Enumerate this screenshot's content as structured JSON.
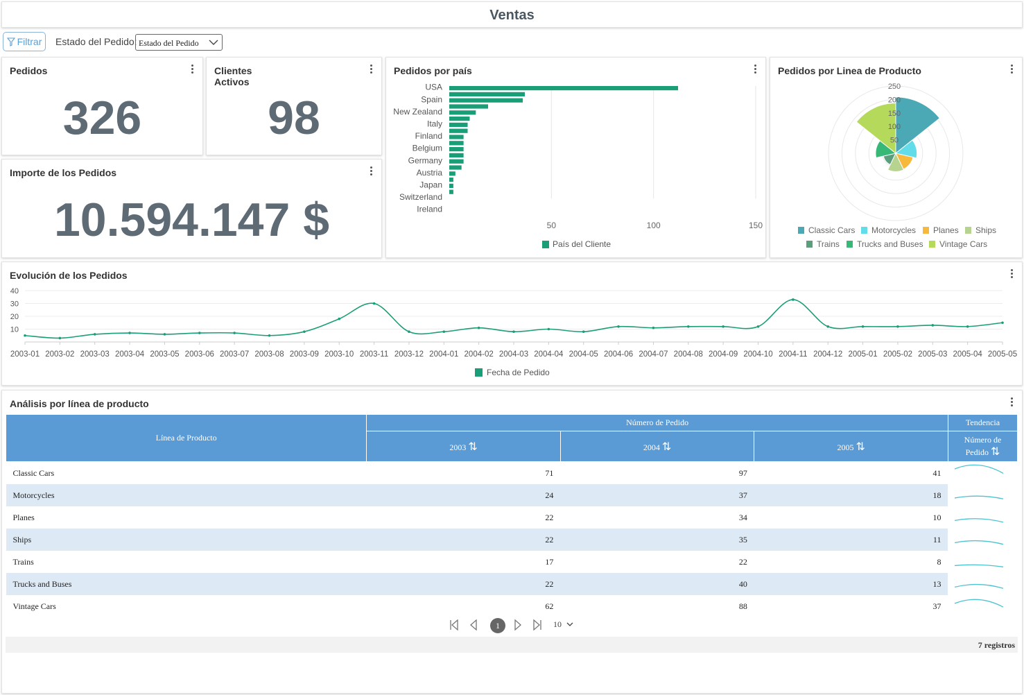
{
  "header": {
    "title": "Ventas"
  },
  "toolbar": {
    "filter_label": "Filtrar",
    "state_label": "Estado del Pedido:",
    "state_select": "Estado del Pedido"
  },
  "kpis": {
    "orders_title": "Pedidos",
    "orders_value": "326",
    "clients_title_1": "Clientes",
    "clients_title_2": "Activos",
    "clients_value": "98",
    "amount_title": "Importe de los Pedidos",
    "amount_value": "10.594.147 $"
  },
  "colors": {
    "bar": "#1a9e77",
    "line": "#1a9e77",
    "header_blue": "#5b9bd5",
    "row_alt": "#dde9f5",
    "spark": "#4cc3cf"
  },
  "country_chart": {
    "title": "Pedidos por país",
    "legend": "País del Cliente",
    "chart_data": {
      "type": "bar",
      "orientation": "horizontal",
      "xlim": [
        0,
        150
      ],
      "xticks": [
        50,
        100,
        150
      ],
      "shown_labels": [
        "USA",
        "Spain",
        "New Zealand",
        "Italy",
        "Finland",
        "Belgium",
        "Germany",
        "Austria",
        "Japan",
        "Switzerland",
        "Ireland"
      ],
      "values": [
        112,
        37,
        36,
        19,
        13,
        10,
        9,
        9,
        7,
        7,
        7,
        7,
        7,
        6,
        3,
        2,
        2,
        2
      ]
    }
  },
  "polar_chart": {
    "title": "Pedidos por Linea de Producto",
    "rticks": [
      "250",
      "200",
      "150",
      "100",
      "50"
    ],
    "chart_data": {
      "type": "pie",
      "categories": [
        "Classic Cars",
        "Motorcycles",
        "Planes",
        "Ships",
        "Trains",
        "Trucks and Buses",
        "Vintage Cars"
      ],
      "values": [
        209,
        79,
        66,
        68,
        47,
        75,
        187
      ],
      "rmax": 250,
      "colors": [
        "#4aa9b5",
        "#62dce9",
        "#f7b93b",
        "#b6d38f",
        "#5a9e7c",
        "#38b877",
        "#b5d95b"
      ]
    }
  },
  "line_chart": {
    "title": "Evolución de los Pedidos",
    "legend": "Fecha de Pedido",
    "chart_data": {
      "type": "line",
      "ylim": [
        0,
        40
      ],
      "yticks": [
        10,
        20,
        30,
        40
      ],
      "x": [
        "2003-01",
        "2003-02",
        "2003-03",
        "2003-04",
        "2003-05",
        "2003-06",
        "2003-07",
        "2003-08",
        "2003-09",
        "2003-10",
        "2003-11",
        "2003-12",
        "2004-01",
        "2004-02",
        "2004-03",
        "2004-04",
        "2004-05",
        "2004-06",
        "2004-07",
        "2004-08",
        "2004-09",
        "2004-10",
        "2004-11",
        "2004-12",
        "2005-01",
        "2005-02",
        "2005-03",
        "2005-04",
        "2005-05"
      ],
      "values": [
        5,
        3,
        6,
        7,
        6,
        7,
        7,
        5,
        8,
        18,
        30,
        8,
        8,
        11,
        8,
        10,
        8,
        12,
        11,
        12,
        12,
        12,
        33,
        12,
        12,
        12,
        13,
        12,
        15
      ]
    }
  },
  "table": {
    "title": "Análisis por línea de producto",
    "col_product": "Línea de Producto",
    "group_orders": "Número de Pedido",
    "group_trend": "Tendencia",
    "years": [
      "2003",
      "2004",
      "2005"
    ],
    "trend_col_1": "Número de",
    "trend_col_2": "Pedido",
    "rows": [
      {
        "name": "Classic Cars",
        "v": [
          "71",
          "97",
          "41"
        ],
        "trend": [
          71,
          97,
          41
        ]
      },
      {
        "name": "Motorcycles",
        "v": [
          "24",
          "37",
          "18"
        ],
        "trend": [
          24,
          37,
          18
        ]
      },
      {
        "name": "Planes",
        "v": [
          "22",
          "34",
          "10"
        ],
        "trend": [
          22,
          34,
          10
        ]
      },
      {
        "name": "Ships",
        "v": [
          "22",
          "35",
          "11"
        ],
        "trend": [
          22,
          35,
          11
        ]
      },
      {
        "name": "Trains",
        "v": [
          "17",
          "22",
          "8"
        ],
        "trend": [
          17,
          22,
          8
        ]
      },
      {
        "name": "Trucks and Buses",
        "v": [
          "22",
          "40",
          "13"
        ],
        "trend": [
          22,
          40,
          13
        ]
      },
      {
        "name": "Vintage Cars",
        "v": [
          "62",
          "88",
          "37"
        ],
        "trend": [
          62,
          88,
          37
        ]
      }
    ],
    "page": "1",
    "page_size": "10",
    "records": "7 registros"
  }
}
